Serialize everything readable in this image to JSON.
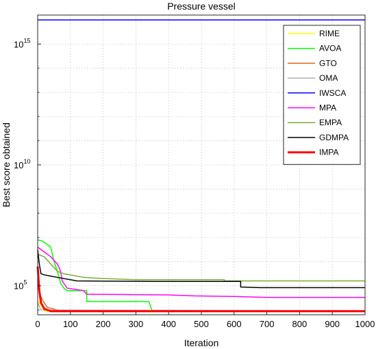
{
  "chart_data": {
    "type": "line",
    "title": "Pressure vessel",
    "xlabel": "Iteration",
    "ylabel": "Best score obtained",
    "xlim": [
      0,
      1000
    ],
    "ylim_log10": [
      3.8,
      16.2
    ],
    "yscale": "log",
    "x_ticks": [
      0,
      100,
      200,
      300,
      400,
      500,
      600,
      700,
      800,
      900,
      1000
    ],
    "y_ticks": [
      {
        "base": "10",
        "exp": "5",
        "log10": 5
      },
      {
        "base": "10",
        "exp": "10",
        "log10": 10
      },
      {
        "base": "10",
        "exp": "15",
        "log10": 15
      }
    ],
    "grid": true,
    "legend_position": "top-right",
    "series": [
      {
        "name": "RIME",
        "color": "#ffff00",
        "width": 1.5,
        "log10": [
          [
            0,
            4.4
          ],
          [
            10,
            4.2
          ],
          [
            20,
            3.95
          ],
          [
            1000,
            3.95
          ]
        ]
      },
      {
        "name": "AVOA",
        "color": "#00ff00",
        "width": 1.5,
        "log10": [
          [
            0,
            6.9
          ],
          [
            15,
            6.85
          ],
          [
            40,
            6.6
          ],
          [
            50,
            6.0
          ],
          [
            60,
            5.6
          ],
          [
            70,
            5.1
          ],
          [
            80,
            4.9
          ],
          [
            90,
            4.8
          ],
          [
            110,
            4.8
          ],
          [
            150,
            4.8
          ],
          [
            150,
            4.35
          ],
          [
            340,
            4.35
          ],
          [
            350,
            3.95
          ],
          [
            1000,
            3.95
          ]
        ]
      },
      {
        "name": "GTO",
        "color": "#e0601a",
        "width": 1.5,
        "log10": [
          [
            0,
            5.2
          ],
          [
            5,
            4.7
          ],
          [
            15,
            4.4
          ],
          [
            30,
            4.1
          ],
          [
            60,
            4.0
          ],
          [
            100,
            3.95
          ],
          [
            1000,
            3.95
          ]
        ]
      },
      {
        "name": "OMA",
        "color": "#b0b0b0",
        "width": 1.5,
        "log10": [
          [
            0,
            4.3
          ],
          [
            10,
            4.0
          ],
          [
            1000,
            3.95
          ]
        ]
      },
      {
        "name": "IWSCA",
        "color": "#0000ff",
        "width": 1.5,
        "log10": [
          [
            0,
            16.0
          ],
          [
            1000,
            16.0
          ]
        ]
      },
      {
        "name": "MPA",
        "color": "#ff00ff",
        "width": 1.5,
        "log10": [
          [
            0,
            6.6
          ],
          [
            40,
            6.2
          ],
          [
            60,
            5.9
          ],
          [
            70,
            5.6
          ],
          [
            75,
            5.2
          ],
          [
            90,
            4.9
          ],
          [
            140,
            4.8
          ],
          [
            150,
            4.65
          ],
          [
            400,
            4.62
          ],
          [
            480,
            4.58
          ],
          [
            600,
            4.56
          ],
          [
            700,
            4.52
          ],
          [
            1000,
            4.52
          ]
        ]
      },
      {
        "name": "EMPA",
        "color": "#77ac30",
        "width": 1.5,
        "log10": [
          [
            0,
            6.3
          ],
          [
            20,
            6.2
          ],
          [
            40,
            5.9
          ],
          [
            60,
            5.6
          ],
          [
            80,
            5.5
          ],
          [
            100,
            5.45
          ],
          [
            140,
            5.35
          ],
          [
            200,
            5.3
          ],
          [
            300,
            5.25
          ],
          [
            570,
            5.25
          ],
          [
            570,
            5.2
          ],
          [
            1000,
            5.2
          ]
        ]
      },
      {
        "name": "GDMPA",
        "color": "#000000",
        "width": 1.5,
        "log10": [
          [
            0,
            6.5
          ],
          [
            5,
            5.9
          ],
          [
            10,
            5.5
          ],
          [
            20,
            5.45
          ],
          [
            40,
            5.4
          ],
          [
            60,
            5.35
          ],
          [
            120,
            5.2
          ],
          [
            360,
            5.18
          ],
          [
            620,
            5.18
          ],
          [
            620,
            4.95
          ],
          [
            680,
            4.92
          ],
          [
            1000,
            4.92
          ]
        ]
      },
      {
        "name": "IMPA",
        "color": "#ff0000",
        "width": 3,
        "log10": [
          [
            0,
            5.8
          ],
          [
            5,
            4.8
          ],
          [
            10,
            4.3
          ],
          [
            20,
            4.05
          ],
          [
            40,
            3.95
          ],
          [
            1000,
            3.95
          ]
        ]
      }
    ]
  }
}
